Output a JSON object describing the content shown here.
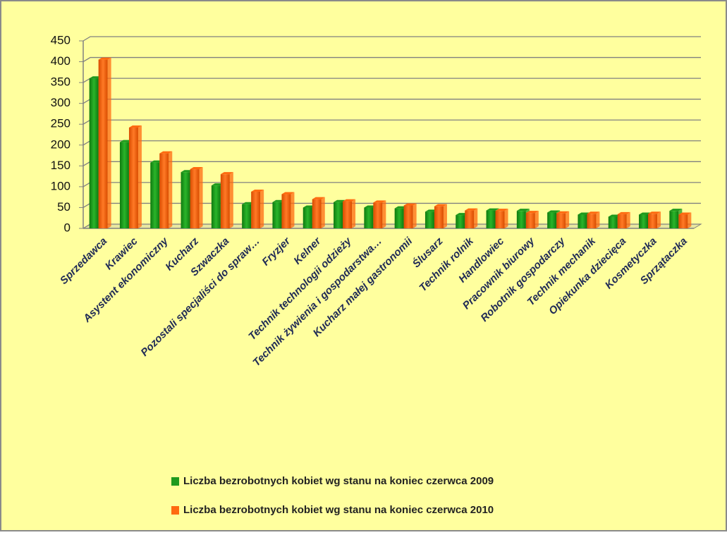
{
  "chart_data": {
    "type": "bar",
    "categories": [
      "Sprzedawca",
      "Krawiec",
      "Asystent ekonomiczny",
      "Kucharz",
      "Szwaczka",
      "Pozostali specjaliści do spraw…",
      "Fryzjer",
      "Kelner",
      "Technik technologii odzieży",
      "Technik żywienia i gospodarstwa…",
      "Kucharz małej gastronomii",
      "Ślusarz",
      "Technik rolnik",
      "Handlowiec",
      "Pracownik biurowy",
      "Robotnik gospodarczy",
      "Technik mechanik",
      "Opiekunka dziecięca",
      "Kosmetyczka",
      "Sprzątaczka"
    ],
    "series": [
      {
        "name": "Liczba bezrobotnych kobiet wg stanu na koniec czerwca 2009",
        "color": "#1e9a1e",
        "values": [
          360,
          207,
          158,
          135,
          103,
          58,
          63,
          50,
          63,
          50,
          48,
          40,
          32,
          43,
          42,
          38,
          33,
          28,
          33,
          42
        ]
      },
      {
        "name": "Liczba bezrobotnych kobiet wg stanu na koniec czerwca 2010",
        "color": "#ff6a10",
        "values": [
          405,
          242,
          180,
          142,
          130,
          88,
          82,
          70,
          65,
          62,
          55,
          53,
          43,
          42,
          37,
          36,
          35,
          34,
          35,
          33
        ]
      }
    ],
    "ylim": [
      0,
      450
    ],
    "yticks": [
      0,
      50,
      100,
      150,
      200,
      250,
      300,
      350,
      400,
      450
    ],
    "grid": true,
    "legend": "bottom"
  }
}
